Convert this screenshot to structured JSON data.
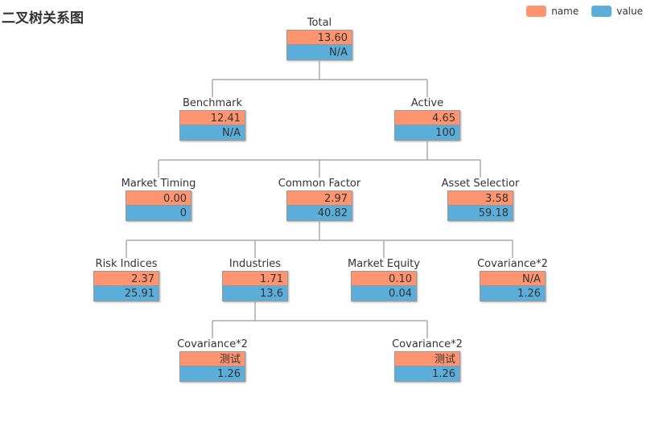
{
  "title": "二叉树关系图",
  "colors": {
    "name": "#ff9470",
    "value": "#5aaed9",
    "line": "#aaaaaa"
  },
  "legend": [
    {
      "label": "name",
      "color": "#ff9470"
    },
    {
      "label": "value",
      "color": "#5aaed9"
    }
  ],
  "nodes": [
    {
      "id": "total",
      "label": "Total",
      "top": "13.60",
      "bottom": "N/A"
    },
    {
      "id": "benchmark",
      "label": "Benchmark",
      "top": "12.41",
      "bottom": "N/A"
    },
    {
      "id": "active",
      "label": "Active",
      "top": "4.65",
      "bottom": "100"
    },
    {
      "id": "market-timing",
      "label": "Market Timing",
      "top": "0.00",
      "bottom": "0"
    },
    {
      "id": "common-factor",
      "label": "Common Factor",
      "top": "2.97",
      "bottom": "40.82"
    },
    {
      "id": "asset-selection",
      "label": "Asset Selectior",
      "top": "3.58",
      "bottom": "59.18"
    },
    {
      "id": "risk-indices",
      "label": "Risk Indices",
      "top": "2.37",
      "bottom": "25.91"
    },
    {
      "id": "industries",
      "label": "Industries",
      "top": "1.71",
      "bottom": "13.6"
    },
    {
      "id": "market-equity",
      "label": "Market Equity",
      "top": "0.10",
      "bottom": "0.04"
    },
    {
      "id": "covariance-2",
      "label": "Covariance*2",
      "top": "N/A",
      "bottom": "1.26"
    },
    {
      "id": "covariance-2-a",
      "label": "Covariance*2",
      "top": "测试",
      "bottom": "1.26"
    },
    {
      "id": "covariance-2-b",
      "label": "Covariance*2",
      "top": "测试",
      "bottom": "1.26"
    }
  ]
}
